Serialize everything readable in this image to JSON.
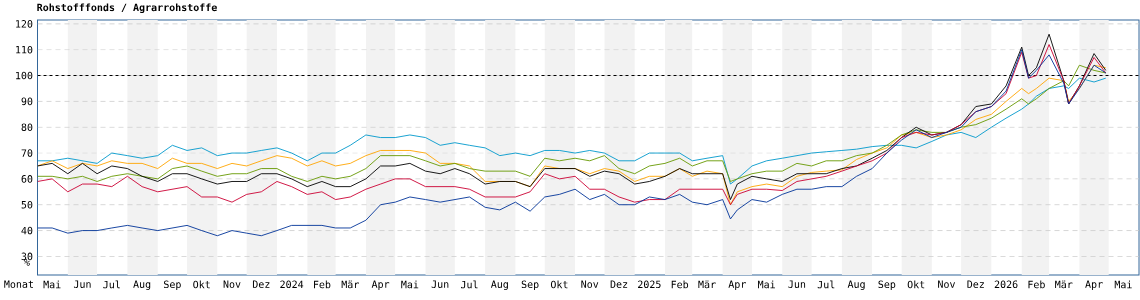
{
  "chart_data": {
    "type": "line",
    "title": "Rohstofffonds / Agrarrohstoffe",
    "xlabel": "Monat",
    "ylabel": "%",
    "x": [
      "2023-05-01",
      "2023-05-16",
      "2023-06-01",
      "2023-06-16",
      "2023-07-01",
      "2023-07-16",
      "2023-08-01",
      "2023-08-16",
      "2023-09-01",
      "2023-09-16",
      "2023-10-01",
      "2023-10-16",
      "2023-11-01",
      "2023-11-16",
      "2023-12-01",
      "2023-12-16",
      "2024-01-01",
      "2024-01-16",
      "2024-02-01",
      "2024-02-16",
      "2024-03-01",
      "2024-03-16",
      "2024-04-01",
      "2024-04-16",
      "2024-05-01",
      "2024-05-16",
      "2024-06-01",
      "2024-06-16",
      "2024-07-01",
      "2024-07-16",
      "2024-08-01",
      "2024-08-16",
      "2024-09-01",
      "2024-09-16",
      "2024-10-01",
      "2024-10-16",
      "2024-11-01",
      "2024-11-16",
      "2024-12-01",
      "2024-12-16",
      "2025-01-01",
      "2025-01-16",
      "2025-02-01",
      "2025-02-16",
      "2025-03-01",
      "2025-03-16",
      "2025-04-01",
      "2025-04-09",
      "2025-04-16",
      "2025-05-01",
      "2025-05-16",
      "2025-06-01",
      "2025-06-16",
      "2025-07-01",
      "2025-07-16",
      "2025-08-01",
      "2025-08-16",
      "2025-09-01",
      "2025-09-16",
      "2025-10-01",
      "2025-10-16",
      "2025-11-01",
      "2025-11-16",
      "2025-12-01",
      "2025-12-16",
      "2026-01-01",
      "2026-01-16",
      "2026-02-01",
      "2026-02-08",
      "2026-02-16",
      "2026-03-01",
      "2026-03-16",
      "2026-03-21",
      "2026-04-01",
      "2026-04-16",
      "2026-04-28"
    ],
    "series": [
      {
        "color": "#0099cc",
        "values": [
          67,
          67,
          68,
          67,
          66,
          70,
          69,
          68,
          69,
          73,
          71,
          72,
          69,
          70,
          70,
          71,
          72,
          70,
          67,
          70,
          70,
          73,
          77,
          76,
          76,
          77,
          76,
          73,
          74,
          73,
          72,
          69,
          70,
          69,
          71,
          71,
          70,
          71,
          70,
          67,
          67,
          70,
          70,
          70,
          67,
          68,
          69,
          58,
          60,
          65,
          67,
          68,
          69,
          70,
          70.5,
          71,
          71.5,
          72.5,
          73,
          73,
          72,
          74.5,
          77,
          78,
          76,
          80,
          83.5,
          87,
          89,
          92,
          95,
          96,
          95,
          99,
          97.5,
          99
        ]
      },
      {
        "color": "#ffa500",
        "values": [
          65,
          67,
          64,
          66,
          65,
          67,
          66,
          66,
          64,
          68,
          66,
          66,
          64,
          66,
          65,
          67,
          69,
          68,
          65,
          67,
          65,
          66,
          69,
          71,
          71,
          71,
          70,
          66,
          66,
          65,
          59,
          59,
          59,
          57,
          65,
          64,
          64,
          62,
          64,
          63,
          59,
          61,
          61,
          64,
          61,
          63,
          62,
          50,
          55,
          57,
          58,
          57,
          61,
          62.5,
          63,
          63.5,
          67.5,
          70,
          72,
          77,
          78,
          76,
          77,
          79,
          83,
          85,
          90,
          95,
          93,
          95,
          99,
          98,
          90,
          95,
          104,
          103
        ]
      },
      {
        "color": "#669900",
        "values": [
          61,
          61,
          60,
          61,
          59,
          61,
          62,
          61,
          60,
          64,
          65,
          63,
          61,
          62,
          62,
          64,
          64,
          61,
          59,
          61,
          60,
          61,
          64,
          69,
          69,
          69,
          67,
          65,
          66,
          64,
          63,
          63,
          63,
          61,
          68,
          67,
          68,
          67,
          69,
          64,
          62,
          65,
          66,
          68,
          65,
          67,
          67,
          59,
          60,
          62,
          63,
          63,
          66,
          65,
          67,
          67,
          69,
          70,
          73,
          77,
          79,
          78,
          78,
          80,
          81,
          83.5,
          87,
          91,
          89,
          91,
          95,
          98,
          96,
          104,
          102,
          101
        ]
      },
      {
        "color": "#000000",
        "values": [
          65,
          66,
          62,
          66,
          62,
          65,
          64,
          61,
          59,
          62,
          62,
          60,
          58,
          59,
          59,
          62,
          62,
          60,
          57,
          59,
          57,
          57,
          60,
          65,
          65,
          66,
          63,
          62,
          64,
          62,
          58,
          59,
          59,
          57,
          64,
          64,
          64,
          61,
          63,
          62,
          58,
          59,
          61,
          64,
          62,
          62,
          62,
          52,
          58,
          61,
          60,
          59,
          62,
          62,
          62,
          64,
          65,
          68,
          71,
          76,
          80,
          77,
          78,
          81,
          88,
          89,
          96,
          111,
          100,
          103,
          116,
          98,
          89,
          96,
          108.5,
          102
        ]
      },
      {
        "color": "#cc0033",
        "values": [
          59,
          60,
          55,
          58,
          58,
          57,
          61,
          57,
          55,
          56,
          57,
          53,
          53,
          51,
          54,
          55,
          59,
          57,
          54,
          55,
          52,
          53,
          56,
          58,
          60,
          60,
          57,
          57,
          57,
          56,
          53,
          53,
          53,
          55,
          62,
          60,
          61,
          56,
          56,
          53,
          51,
          52,
          52,
          56,
          56,
          56,
          56,
          50,
          54,
          56,
          56,
          55.5,
          59,
          60,
          61,
          63,
          65,
          67,
          70,
          76,
          78,
          77,
          78,
          81,
          86,
          88,
          93,
          109,
          99,
          100,
          112,
          98,
          89,
          96,
          107,
          101
        ]
      },
      {
        "color": "#003399",
        "values": [
          41,
          41,
          39,
          40,
          40,
          41,
          42,
          41,
          40,
          41,
          42,
          40,
          38,
          40,
          39,
          38,
          40,
          42,
          42,
          42,
          41,
          41,
          44,
          50,
          51,
          53,
          52,
          51,
          52,
          53,
          49,
          48,
          51,
          47.5,
          53,
          54,
          56,
          52,
          54,
          50,
          50,
          53,
          52,
          54,
          51,
          50,
          52,
          44.5,
          48,
          52,
          51,
          54,
          56,
          56,
          57,
          57,
          61,
          64,
          70,
          75,
          79,
          76,
          78,
          80,
          86,
          88,
          94,
          110,
          99,
          102,
          108,
          97,
          89,
          95,
          104,
          101
        ]
      }
    ],
    "xlim": [
      "2023-05-01",
      "2026-06-01"
    ],
    "xticks": [
      {
        "value": "2023-05-16",
        "label": "Mai"
      },
      {
        "value": "2023-06-16",
        "label": "Jun"
      },
      {
        "value": "2023-07-16",
        "label": "Jul"
      },
      {
        "value": "2023-08-16",
        "label": "Aug"
      },
      {
        "value": "2023-09-16",
        "label": "Sep"
      },
      {
        "value": "2023-10-16",
        "label": "Okt"
      },
      {
        "value": "2023-11-16",
        "label": "Nov"
      },
      {
        "value": "2023-12-16",
        "label": "Dez"
      },
      {
        "value": "2024-01-16",
        "label": "2024"
      },
      {
        "value": "2024-02-16",
        "label": "Feb"
      },
      {
        "value": "2024-03-16",
        "label": "Mär"
      },
      {
        "value": "2024-04-16",
        "label": "Apr"
      },
      {
        "value": "2024-05-16",
        "label": "Mai"
      },
      {
        "value": "2024-06-16",
        "label": "Jun"
      },
      {
        "value": "2024-07-16",
        "label": "Jul"
      },
      {
        "value": "2024-08-16",
        "label": "Aug"
      },
      {
        "value": "2024-09-16",
        "label": "Sep"
      },
      {
        "value": "2024-10-16",
        "label": "Okt"
      },
      {
        "value": "2024-11-16",
        "label": "Nov"
      },
      {
        "value": "2024-12-16",
        "label": "Dez"
      },
      {
        "value": "2025-01-16",
        "label": "2025"
      },
      {
        "value": "2025-02-16",
        "label": "Feb"
      },
      {
        "value": "2025-03-16",
        "label": "Mär"
      },
      {
        "value": "2025-04-16",
        "label": "Apr"
      },
      {
        "value": "2025-05-16",
        "label": "Mai"
      },
      {
        "value": "2025-06-16",
        "label": "Jun"
      },
      {
        "value": "2025-07-16",
        "label": "Jul"
      },
      {
        "value": "2025-08-16",
        "label": "Aug"
      },
      {
        "value": "2025-09-16",
        "label": "Sep"
      },
      {
        "value": "2025-10-16",
        "label": "Okt"
      },
      {
        "value": "2025-11-16",
        "label": "Nov"
      },
      {
        "value": "2025-12-16",
        "label": "Dez"
      },
      {
        "value": "2026-01-16",
        "label": "2026"
      },
      {
        "value": "2026-02-16",
        "label": "Feb"
      },
      {
        "value": "2026-03-16",
        "label": "Mär"
      },
      {
        "value": "2026-04-16",
        "label": "Apr"
      },
      {
        "value": "2026-05-16",
        "label": "Mai"
      }
    ],
    "ylim": [
      22.8,
      121.5
    ],
    "yticks": [
      30,
      40,
      50,
      60,
      70,
      80,
      90,
      100,
      110,
      120
    ],
    "ref_lines": [
      {
        "axis": "y",
        "value": 100,
        "color": "#000000",
        "line_style": "dashed"
      }
    ],
    "bands": [
      {
        "axis": "x",
        "from": "2023-06-01",
        "to": "2023-07-01",
        "color": "#f2f2f2"
      },
      {
        "axis": "x",
        "from": "2023-08-01",
        "to": "2023-09-01",
        "color": "#f2f2f2"
      },
      {
        "axis": "x",
        "from": "2023-10-01",
        "to": "2023-11-01",
        "color": "#f2f2f2"
      },
      {
        "axis": "x",
        "from": "2023-12-01",
        "to": "2024-01-01",
        "color": "#f2f2f2"
      },
      {
        "axis": "x",
        "from": "2024-02-01",
        "to": "2024-03-01",
        "color": "#f2f2f2"
      },
      {
        "axis": "x",
        "from": "2024-04-01",
        "to": "2024-05-01",
        "color": "#f2f2f2"
      },
      {
        "axis": "x",
        "from": "2024-06-01",
        "to": "2024-07-01",
        "color": "#f2f2f2"
      },
      {
        "axis": "x",
        "from": "2024-08-01",
        "to": "2024-09-01",
        "color": "#f2f2f2"
      },
      {
        "axis": "x",
        "from": "2024-10-01",
        "to": "2024-11-01",
        "color": "#f2f2f2"
      },
      {
        "axis": "x",
        "from": "2024-12-01",
        "to": "2025-01-01",
        "color": "#f2f2f2"
      },
      {
        "axis": "x",
        "from": "2025-02-01",
        "to": "2025-03-01",
        "color": "#f2f2f2"
      },
      {
        "axis": "x",
        "from": "2025-04-01",
        "to": "2025-05-01",
        "color": "#f2f2f2"
      },
      {
        "axis": "x",
        "from": "2025-06-01",
        "to": "2025-07-01",
        "color": "#f2f2f2"
      },
      {
        "axis": "x",
        "from": "2025-08-01",
        "to": "2025-09-01",
        "color": "#f2f2f2"
      },
      {
        "axis": "x",
        "from": "2025-10-01",
        "to": "2025-11-01",
        "color": "#f2f2f2"
      },
      {
        "axis": "x",
        "from": "2025-12-01",
        "to": "2026-01-01",
        "color": "#f2f2f2"
      },
      {
        "axis": "x",
        "from": "2026-02-01",
        "to": "2026-03-01",
        "color": "#f2f2f2"
      },
      {
        "axis": "x",
        "from": "2026-04-01",
        "to": "2026-05-01",
        "color": "#f2f2f2"
      }
    ],
    "grid": "y",
    "marker": "none",
    "line_style": "solid"
  }
}
